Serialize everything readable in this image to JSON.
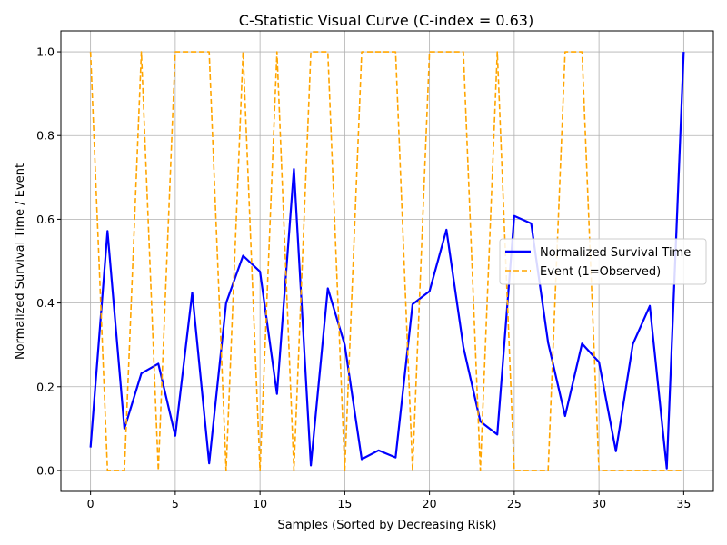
{
  "chart_data": {
    "type": "line",
    "title": "C-Statistic Visual Curve (C-index = 0.63)",
    "xlabel": "Samples (Sorted by Decreasing Risk)",
    "ylabel": "Normalized Survival Time / Event",
    "xlim": [
      -1.75,
      36.75
    ],
    "ylim": [
      -0.05,
      1.05
    ],
    "xticks": [
      0,
      5,
      10,
      15,
      20,
      25,
      30,
      35
    ],
    "yticks": [
      0.0,
      0.2,
      0.4,
      0.6,
      0.8,
      1.0
    ],
    "xtick_labels": [
      "0",
      "5",
      "10",
      "15",
      "20",
      "25",
      "30",
      "35"
    ],
    "ytick_labels": [
      "0.0",
      "0.2",
      "0.4",
      "0.6",
      "0.8",
      "1.0"
    ],
    "grid": true,
    "legend_position": "center-right",
    "x": [
      0,
      1,
      2,
      3,
      4,
      5,
      6,
      7,
      8,
      9,
      10,
      11,
      12,
      13,
      14,
      15,
      16,
      17,
      18,
      19,
      20,
      21,
      22,
      23,
      24,
      25,
      26,
      27,
      28,
      29,
      30,
      31,
      32,
      33,
      34,
      35
    ],
    "series": [
      {
        "name": "Normalized Survival Time",
        "color": "#0000ff",
        "style": "solid",
        "values": [
          0.055,
          0.572,
          0.1,
          0.232,
          0.255,
          0.083,
          0.425,
          0.017,
          0.4,
          0.513,
          0.475,
          0.183,
          0.72,
          0.012,
          0.435,
          0.3,
          0.027,
          0.048,
          0.031,
          0.397,
          0.428,
          0.575,
          0.295,
          0.117,
          0.086,
          0.608,
          0.59,
          0.305,
          0.13,
          0.303,
          0.259,
          0.046,
          0.302,
          0.393,
          0.005,
          1.0
        ]
      },
      {
        "name": "Event (1=Observed)",
        "color": "#ffa500",
        "style": "dashed",
        "values": [
          1,
          0,
          0,
          1,
          0,
          1,
          1,
          1,
          0,
          1,
          0,
          1,
          0,
          1,
          1,
          0,
          1,
          1,
          1,
          0,
          1,
          1,
          1,
          0,
          1,
          0,
          0,
          0,
          1,
          1,
          0,
          0,
          0,
          0,
          0,
          0
        ]
      }
    ]
  }
}
